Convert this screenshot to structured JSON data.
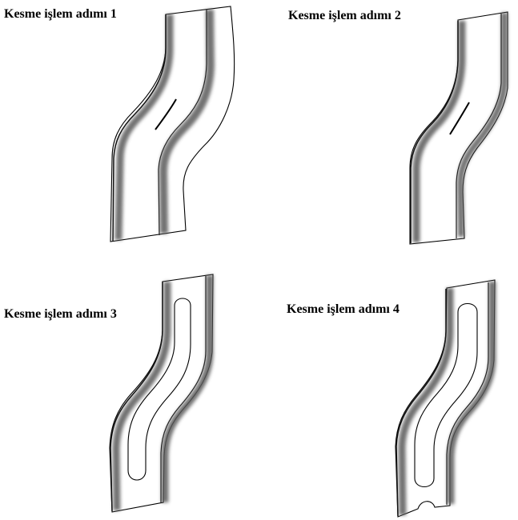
{
  "figures": [
    {
      "caption": "Kesme işlem adımı 1"
    },
    {
      "caption": "Kesme işlem adımı 2"
    },
    {
      "caption": "Kesme işlem adımı 3"
    },
    {
      "caption": "Kesme işlem adımı 4"
    }
  ]
}
